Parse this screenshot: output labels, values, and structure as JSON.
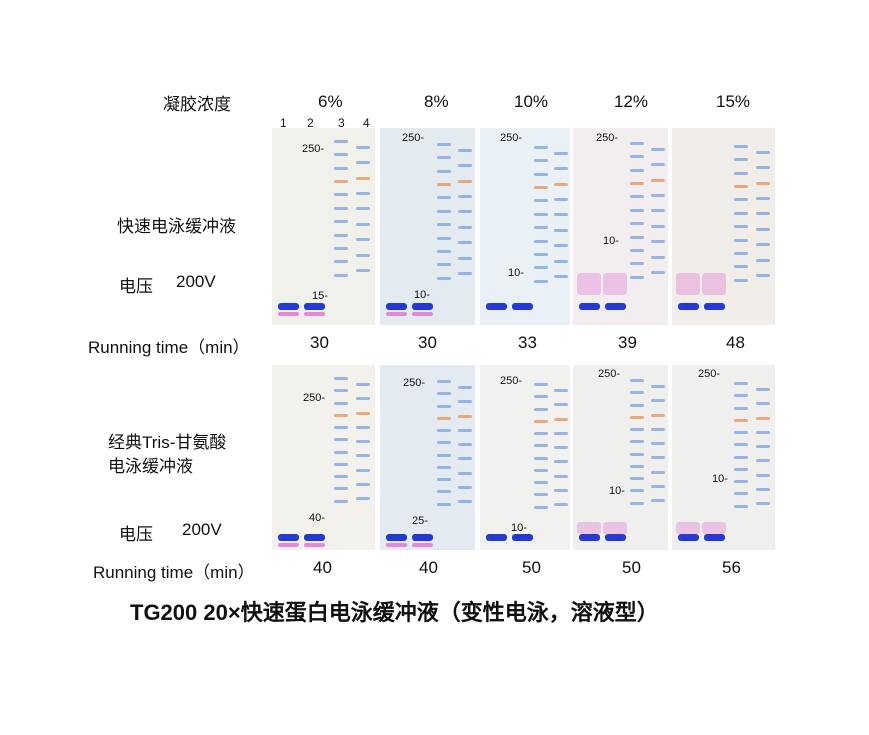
{
  "header": {
    "gel_concentration_label": "凝胶浓度",
    "concentrations": [
      "6%",
      "8%",
      "10%",
      "12%",
      "15%"
    ],
    "lane_numbers": [
      "1",
      "2",
      "3",
      "4"
    ]
  },
  "top_row": {
    "buffer_label": "快速电泳缓冲液",
    "voltage_label": "电压",
    "voltage_value": "200V",
    "running_time_label": "Running time（min）",
    "running_times": [
      "30",
      "30",
      "33",
      "39",
      "48"
    ],
    "gels": [
      {
        "markers": [
          "250-",
          "15-"
        ]
      },
      {
        "markers": [
          "250-",
          "10-"
        ]
      },
      {
        "markers": [
          "250-",
          "10-"
        ]
      },
      {
        "markers": [
          "250-",
          "10-"
        ]
      },
      {
        "markers": []
      }
    ]
  },
  "bottom_row": {
    "buffer_label_line1": "经典Tris-甘氨酸",
    "buffer_label_line2": "电泳缓冲液",
    "voltage_label": "电压",
    "voltage_value": "200V",
    "running_time_label": "Running time（min）",
    "running_times": [
      "40",
      "40",
      "50",
      "50",
      "56"
    ],
    "gels": [
      {
        "markers": [
          "250-",
          "40-"
        ]
      },
      {
        "markers": [
          "250-",
          "25-"
        ]
      },
      {
        "markers": [
          "250-",
          "10-"
        ]
      },
      {
        "markers": [
          "250-",
          "10-"
        ]
      },
      {
        "markers": [
          "250-",
          "10-"
        ]
      }
    ]
  },
  "caption": "TG200  20×快速蛋白电泳缓冲液（变性电泳，溶液型）",
  "colors": {
    "dye_blue": "#1a2fd0",
    "dye_pink": "#e070d0",
    "marker_blue": "#7aa0e0",
    "marker_orange": "#e8905a",
    "gel_bg": "#eef0f2"
  }
}
